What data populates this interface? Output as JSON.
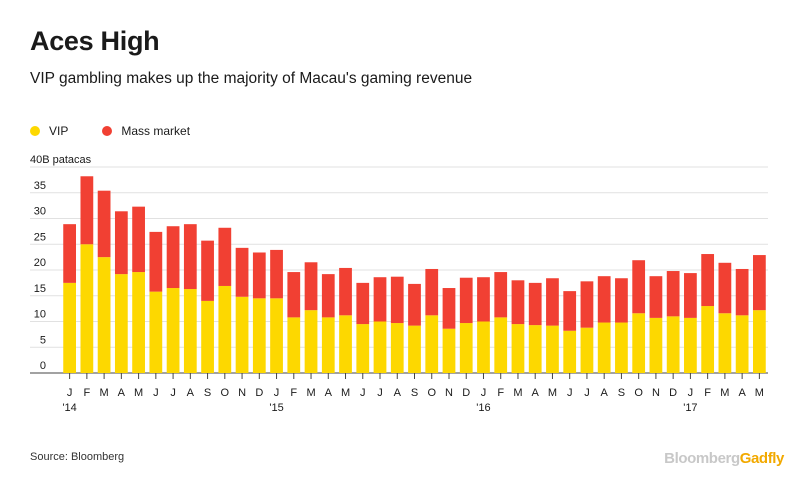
{
  "header": {
    "title": "Aces High",
    "subtitle": "VIP gambling makes up the majority of Macau's gaming revenue"
  },
  "legend": {
    "items": [
      {
        "label": "VIP",
        "color": "#fdd800"
      },
      {
        "label": "Mass market",
        "color": "#f14033"
      }
    ]
  },
  "footer": {
    "source": "Source: Bloomberg",
    "brand_part1": "Bloomberg",
    "brand_part2": "Gadfly"
  },
  "chart_data": {
    "type": "bar",
    "stacked": true,
    "ylabel": "",
    "y_unit_label": "40B patacas",
    "ylim": [
      0,
      40
    ],
    "y_ticks": [
      0,
      5,
      10,
      15,
      20,
      25,
      30,
      35,
      40
    ],
    "y_tick_labels": [
      "0",
      "5",
      "10",
      "15",
      "20",
      "25",
      "30",
      "35",
      "40B patacas"
    ],
    "grid": true,
    "categories": [
      "J",
      "F",
      "M",
      "A",
      "M",
      "J",
      "J",
      "A",
      "S",
      "O",
      "N",
      "D",
      "J",
      "F",
      "M",
      "A",
      "M",
      "J",
      "J",
      "A",
      "S",
      "O",
      "N",
      "D",
      "J",
      "F",
      "M",
      "A",
      "M",
      "J",
      "J",
      "A",
      "S",
      "O",
      "N",
      "D",
      "J",
      "F",
      "M",
      "A",
      "M"
    ],
    "year_labels": [
      {
        "index": 0,
        "label": "'14"
      },
      {
        "index": 12,
        "label": "'15"
      },
      {
        "index": 24,
        "label": "'16"
      },
      {
        "index": 36,
        "label": "'17"
      }
    ],
    "series": [
      {
        "name": "VIP",
        "color": "#fdd800",
        "values": [
          17.5,
          25.0,
          22.5,
          19.2,
          19.6,
          15.8,
          16.5,
          16.3,
          14.0,
          16.9,
          14.8,
          14.5,
          14.5,
          10.8,
          12.2,
          10.8,
          11.2,
          9.5,
          10.0,
          9.7,
          9.2,
          11.2,
          8.6,
          9.7,
          10.0,
          10.8,
          9.5,
          9.3,
          9.2,
          8.2,
          8.8,
          9.8,
          9.8,
          11.6,
          10.7,
          11.0,
          10.7,
          13.0,
          11.6,
          11.2,
          12.2
        ]
      },
      {
        "name": "Mass market",
        "color": "#f14033",
        "values": [
          11.4,
          13.2,
          12.9,
          12.2,
          12.7,
          11.6,
          12.0,
          12.6,
          11.7,
          11.3,
          9.5,
          8.9,
          9.4,
          8.8,
          9.3,
          8.4,
          9.2,
          8.0,
          8.6,
          9.0,
          8.1,
          9.0,
          7.9,
          8.8,
          8.6,
          8.8,
          8.5,
          8.2,
          9.2,
          7.7,
          9.0,
          9.0,
          8.6,
          10.3,
          8.1,
          8.8,
          8.7,
          10.1,
          9.8,
          9.0,
          10.7
        ]
      }
    ]
  }
}
